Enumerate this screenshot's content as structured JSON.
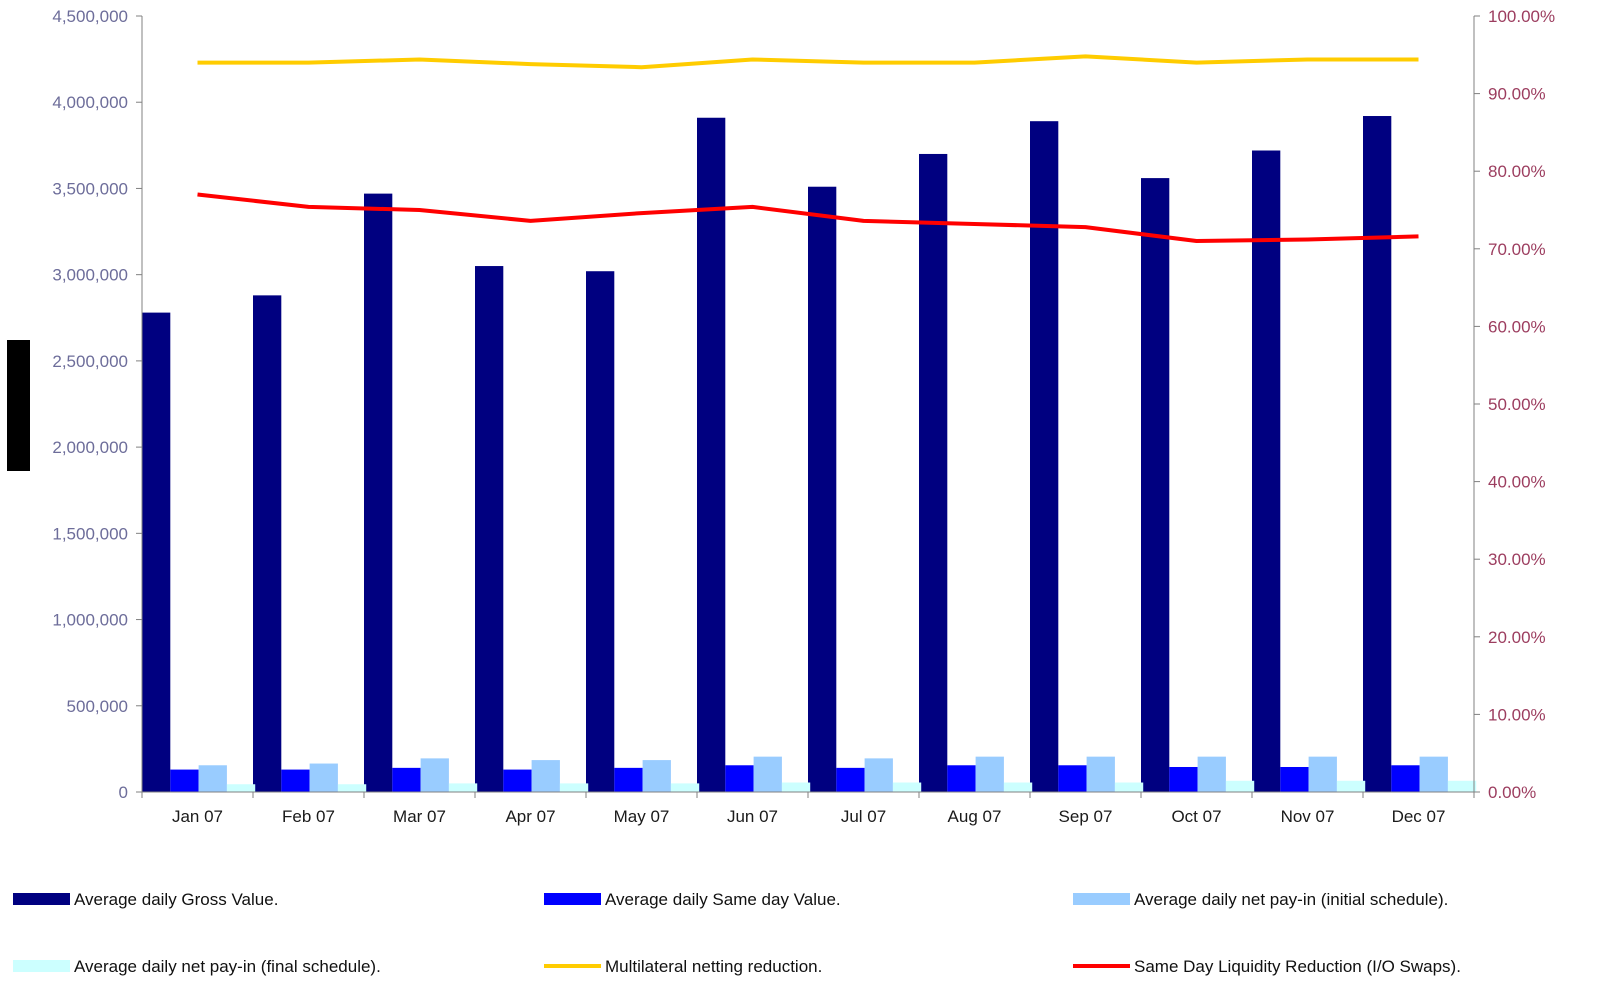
{
  "chart_data": {
    "type": "bar",
    "categories": [
      "Jan 07",
      "Feb 07",
      "Mar 07",
      "Apr 07",
      "May 07",
      "Jun 07",
      "Jul 07",
      "Aug 07",
      "Sep 07",
      "Oct 07",
      "Nov 07",
      "Dec 07"
    ],
    "series": [
      {
        "name": "Average daily Gross Value.",
        "type": "bar",
        "axis": "left",
        "color": "#000080",
        "values": [
          2780000,
          2880000,
          3470000,
          3050000,
          3020000,
          3910000,
          3510000,
          3700000,
          3890000,
          3560000,
          3720000,
          3920000
        ]
      },
      {
        "name": "Average daily Same day Value.",
        "type": "bar",
        "axis": "left",
        "color": "#0000ff",
        "values": [
          130000,
          130000,
          140000,
          130000,
          140000,
          155000,
          140000,
          155000,
          155000,
          145000,
          145000,
          155000
        ]
      },
      {
        "name": "Average daily net pay-in (initial schedule).",
        "type": "bar",
        "axis": "left",
        "color": "#99ccff",
        "values": [
          155000,
          165000,
          195000,
          185000,
          185000,
          205000,
          195000,
          205000,
          205000,
          205000,
          205000,
          205000
        ]
      },
      {
        "name": "Average daily net pay-in (final schedule).",
        "type": "bar",
        "axis": "left",
        "color": "#ccffff",
        "values": [
          45000,
          45000,
          50000,
          50000,
          50000,
          55000,
          55000,
          55000,
          55000,
          65000,
          65000,
          65000
        ]
      },
      {
        "name": "Multilateral netting reduction.",
        "type": "line",
        "axis": "right",
        "color": "#ffcc00",
        "values": [
          94.0,
          94.0,
          94.4,
          93.8,
          93.4,
          94.4,
          94.0,
          94.0,
          94.8,
          94.0,
          94.4,
          94.4
        ]
      },
      {
        "name": "Same Day Liquidity Reduction (I/O Swaps).",
        "type": "line",
        "axis": "right",
        "color": "#ff0000",
        "values": [
          77.0,
          75.4,
          75.0,
          73.6,
          74.6,
          75.4,
          73.6,
          73.2,
          72.8,
          71.0,
          71.2,
          71.6
        ]
      }
    ],
    "left_axis": {
      "min": 0,
      "max": 4500000,
      "step": 500000,
      "tick_labels": [
        "0",
        "500,000",
        "1,000,000",
        "1,500,000",
        "2,000,000",
        "2,500,000",
        "3,000,000",
        "3,500,000",
        "4,000,000",
        "4,500,000"
      ]
    },
    "right_axis": {
      "min": 0,
      "max": 100,
      "step": 10,
      "tick_labels": [
        "0.00%",
        "10.00%",
        "20.00%",
        "30.00%",
        "40.00%",
        "50.00%",
        "60.00%",
        "70.00%",
        "80.00%",
        "90.00%",
        "100.00%"
      ]
    },
    "grid": false,
    "legend_position": "bottom"
  }
}
